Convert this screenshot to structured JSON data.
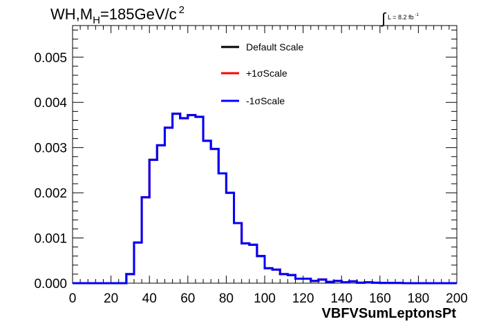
{
  "title": {
    "main": "WH,M",
    "sub": "H",
    "rest": "=185GeV/c",
    "sup": "2"
  },
  "luminosity": {
    "integral": "∫",
    "label": "L = 8.2 fb",
    "sup": "-1"
  },
  "chart_data": {
    "type": "line",
    "xlabel": "VBFVSumLeptonsPt",
    "ylabel": "",
    "xlim": [
      0,
      200
    ],
    "ylim": [
      0,
      0.0057
    ],
    "x_ticks": [
      "0",
      "20",
      "40",
      "60",
      "80",
      "100",
      "120",
      "140",
      "160",
      "180",
      "200"
    ],
    "y_ticks": [
      "0.000",
      "0.001",
      "0.002",
      "0.003",
      "0.004",
      "0.005"
    ],
    "bin_width": 4,
    "x": [
      0,
      4,
      8,
      12,
      16,
      20,
      24,
      28,
      32,
      36,
      40,
      44,
      48,
      52,
      56,
      60,
      64,
      68,
      72,
      76,
      80,
      84,
      88,
      92,
      96,
      100,
      104,
      108,
      112,
      116,
      120,
      124,
      128,
      132,
      136,
      140,
      144,
      148,
      152,
      156,
      160,
      164,
      168,
      172,
      176,
      180,
      184,
      188,
      192,
      196
    ],
    "series": [
      {
        "name": "Default Scale",
        "color": "#000000",
        "values": [
          0,
          0,
          0,
          0,
          0,
          0,
          0,
          0.0002,
          0.0009,
          0.0019,
          0.00273,
          0.00305,
          0.00344,
          0.00375,
          0.00365,
          0.00372,
          0.00368,
          0.00315,
          0.00297,
          0.00243,
          0.002,
          0.00133,
          0.00088,
          0.00085,
          0.0006,
          0.00033,
          0.0003,
          0.0002,
          0.00018,
          0.0001,
          0.0001,
          5e-05,
          8e-05,
          3e-05,
          5e-05,
          2e-05,
          4e-05,
          1e-05,
          2e-05,
          1e-05,
          5e-06,
          5e-06,
          5e-06,
          0,
          0,
          0,
          0,
          0,
          0,
          0
        ]
      },
      {
        "name": "+1σScale",
        "color": "#ff0000",
        "values": [
          0,
          0,
          0,
          0,
          0,
          0,
          0,
          0.0002,
          0.0009,
          0.0019,
          0.00273,
          0.00305,
          0.00344,
          0.00375,
          0.00365,
          0.00372,
          0.00368,
          0.00315,
          0.00297,
          0.00243,
          0.002,
          0.00133,
          0.00088,
          0.00085,
          0.0006,
          0.00033,
          0.0003,
          0.0002,
          0.00018,
          0.0001,
          0.0001,
          5e-05,
          8e-05,
          3e-05,
          5e-05,
          2e-05,
          4e-05,
          1e-05,
          2e-05,
          1e-05,
          5e-06,
          5e-06,
          5e-06,
          0,
          0,
          0,
          0,
          0,
          0,
          0
        ]
      },
      {
        "name": "-1σScale",
        "color": "#0000ff",
        "values": [
          0,
          0,
          0,
          0,
          0,
          0,
          0,
          0.0002,
          0.0009,
          0.0019,
          0.00273,
          0.00305,
          0.00344,
          0.00375,
          0.00365,
          0.00372,
          0.00368,
          0.00315,
          0.00297,
          0.00243,
          0.002,
          0.00133,
          0.00088,
          0.00085,
          0.0006,
          0.00033,
          0.0003,
          0.0002,
          0.00018,
          0.0001,
          0.0001,
          5e-05,
          8e-05,
          3e-05,
          5e-05,
          2e-05,
          4e-05,
          1e-05,
          2e-05,
          1e-05,
          5e-06,
          5e-06,
          5e-06,
          0,
          0,
          0,
          0,
          0,
          0,
          0
        ]
      }
    ],
    "legend": {
      "placement": "top-center"
    },
    "grid": false
  }
}
